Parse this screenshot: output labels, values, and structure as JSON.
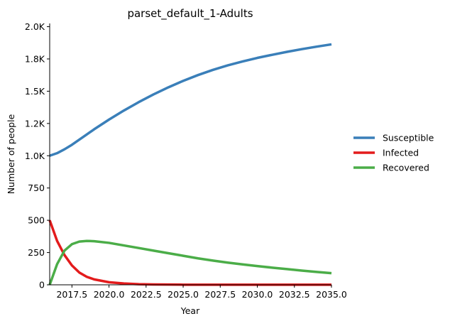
{
  "chart_data": {
    "type": "line",
    "title": "parset_default_1-Adults",
    "xlabel": "Year",
    "ylabel": "Number of people",
    "xlim": [
      2016.0,
      2035.0
    ],
    "ylim": [
      0,
      2025
    ],
    "x_ticks": [
      2017.5,
      2020.0,
      2022.5,
      2025.0,
      2027.5,
      2030.0,
      2032.5,
      2035.0
    ],
    "x_tick_labels": [
      "2017.5",
      "2020.0",
      "2022.5",
      "2025.0",
      "2027.5",
      "2030.0",
      "2032.5",
      "2035.0"
    ],
    "y_ticks": [
      0,
      250,
      500,
      750,
      1000,
      1250,
      1500,
      1750,
      2000
    ],
    "y_tick_labels": [
      "0",
      "250",
      "500",
      "750",
      "1.0K",
      "1.2K",
      "1.5K",
      "1.8K",
      "2.0K"
    ],
    "grid": false,
    "legend_position": "right",
    "x": [
      2016,
      2016.5,
      2017,
      2017.5,
      2018,
      2018.5,
      2019,
      2020,
      2021,
      2022,
      2023,
      2024,
      2025,
      2026,
      2027,
      2028,
      2029,
      2030,
      2031,
      2032,
      2033,
      2034,
      2035
    ],
    "series": [
      {
        "name": "Susceptible",
        "color": "#3a7fb9",
        "values": [
          1000,
          1020,
          1050,
          1085,
          1125,
          1165,
          1205,
          1280,
          1350,
          1415,
          1475,
          1530,
          1580,
          1625,
          1665,
          1700,
          1730,
          1758,
          1782,
          1805,
          1826,
          1845,
          1863
        ]
      },
      {
        "name": "Infected",
        "color": "#e31b1c",
        "values": [
          500,
          340,
          230,
          150,
          95,
          62,
          42,
          20,
          10,
          5,
          3,
          2,
          1,
          1,
          1,
          1,
          1,
          1,
          1,
          1,
          1,
          1,
          1
        ]
      },
      {
        "name": "Recovered",
        "color": "#4bad48",
        "values": [
          0,
          160,
          265,
          315,
          335,
          340,
          338,
          325,
          305,
          285,
          265,
          245,
          225,
          205,
          188,
          172,
          158,
          145,
          133,
          122,
          110,
          100,
          90
        ]
      }
    ]
  }
}
